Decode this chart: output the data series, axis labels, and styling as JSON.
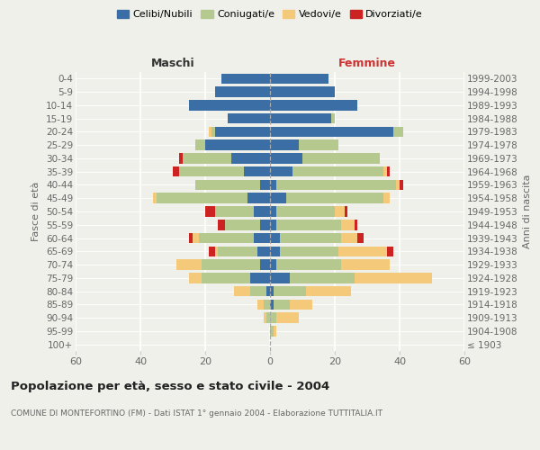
{
  "age_groups": [
    "100+",
    "95-99",
    "90-94",
    "85-89",
    "80-84",
    "75-79",
    "70-74",
    "65-69",
    "60-64",
    "55-59",
    "50-54",
    "45-49",
    "40-44",
    "35-39",
    "30-34",
    "25-29",
    "20-24",
    "15-19",
    "10-14",
    "5-9",
    "0-4"
  ],
  "birth_years": [
    "≤ 1903",
    "1904-1908",
    "1909-1913",
    "1914-1918",
    "1919-1923",
    "1924-1928",
    "1929-1933",
    "1934-1938",
    "1939-1943",
    "1944-1948",
    "1949-1953",
    "1954-1958",
    "1959-1963",
    "1964-1968",
    "1969-1973",
    "1974-1978",
    "1979-1983",
    "1984-1988",
    "1989-1993",
    "1994-1998",
    "1999-2003"
  ],
  "colors": {
    "celibe": "#3a6ea5",
    "coniugato": "#b5c98e",
    "vedovo": "#f5c97a",
    "divorziato": "#cc2222"
  },
  "maschi": {
    "celibe": [
      0,
      0,
      0,
      0,
      1,
      6,
      3,
      4,
      5,
      3,
      5,
      7,
      3,
      8,
      12,
      20,
      17,
      13,
      25,
      17,
      15
    ],
    "coniugato": [
      0,
      0,
      1,
      2,
      5,
      15,
      18,
      12,
      17,
      11,
      12,
      28,
      20,
      20,
      15,
      3,
      1,
      0,
      0,
      0,
      0
    ],
    "vedovo": [
      0,
      0,
      1,
      2,
      5,
      4,
      8,
      1,
      2,
      0,
      0,
      1,
      0,
      0,
      0,
      0,
      1,
      0,
      0,
      0,
      0
    ],
    "divorziato": [
      0,
      0,
      0,
      0,
      0,
      0,
      0,
      2,
      1,
      2,
      3,
      0,
      0,
      2,
      1,
      0,
      0,
      0,
      0,
      0,
      0
    ]
  },
  "femmine": {
    "celibe": [
      0,
      0,
      0,
      1,
      1,
      6,
      2,
      3,
      3,
      2,
      2,
      5,
      2,
      7,
      10,
      9,
      38,
      19,
      27,
      20,
      18
    ],
    "coniugato": [
      0,
      1,
      2,
      5,
      10,
      20,
      20,
      18,
      19,
      20,
      18,
      30,
      37,
      28,
      24,
      12,
      3,
      1,
      0,
      0,
      0
    ],
    "vedovo": [
      0,
      1,
      7,
      7,
      14,
      24,
      15,
      15,
      5,
      4,
      3,
      2,
      1,
      1,
      0,
      0,
      0,
      0,
      0,
      0,
      0
    ],
    "divorziato": [
      0,
      0,
      0,
      0,
      0,
      0,
      0,
      2,
      2,
      1,
      1,
      0,
      1,
      1,
      0,
      0,
      0,
      0,
      0,
      0,
      0
    ]
  },
  "xlim": 60,
  "title": "Popolazione per età, sesso e stato civile - 2004",
  "subtitle": "COMUNE DI MONTEFORTINO (FM) - Dati ISTAT 1° gennaio 2004 - Elaborazione TUTTITALIA.IT",
  "ylabel_left": "Fasce di età",
  "ylabel_right": "Anni di nascita",
  "xlabel_left": "Maschi",
  "xlabel_right": "Femmine",
  "legend_labels": [
    "Celibi/Nubili",
    "Coniugati/e",
    "Vedovi/e",
    "Divorziati/e"
  ],
  "bg_color": "#f0f0eb",
  "grid_color": "#ffffff",
  "text_dark": "#222222",
  "text_mid": "#666666",
  "maschi_color": "#333333",
  "femmine_color": "#cc3333"
}
